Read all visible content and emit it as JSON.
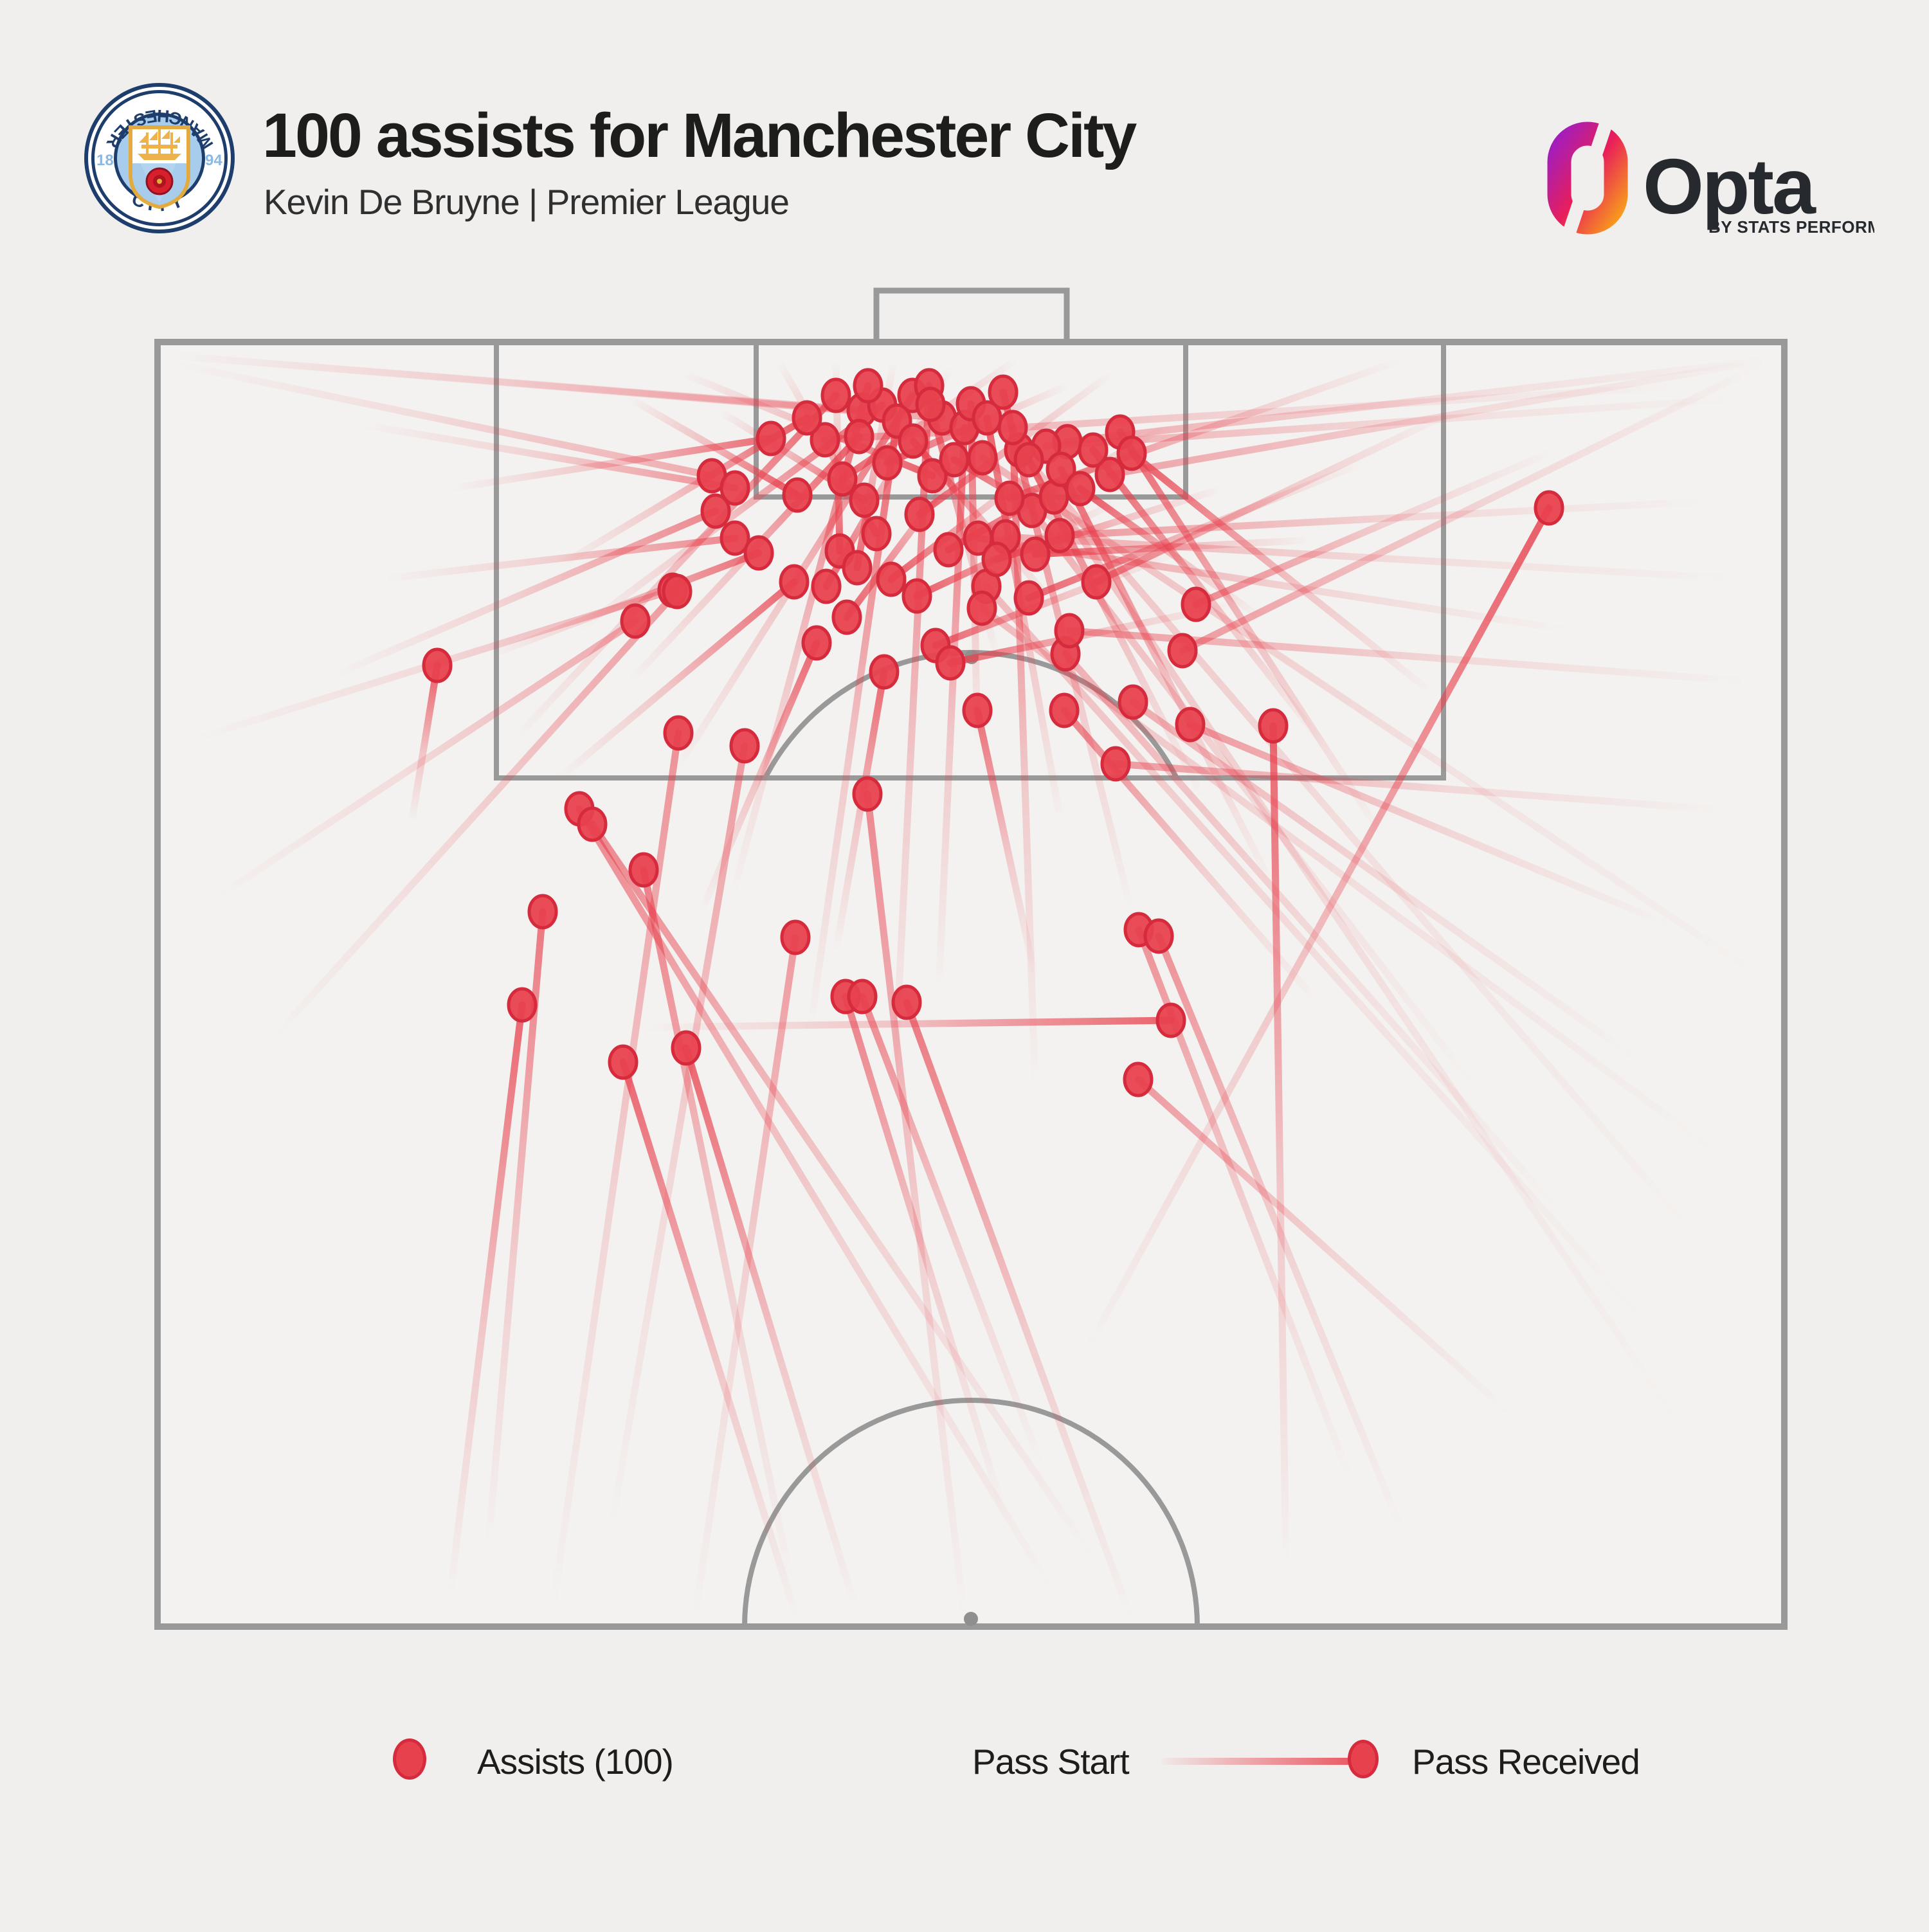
{
  "header": {
    "title": "100 assists for Manchester City",
    "subtitle": "Kevin De Bruyne | Premier League"
  },
  "branding": {
    "club_badge": {
      "name": "manchester-city-crest",
      "text_top": "MANCHESTER",
      "text_bottom": "CITY",
      "year_left": "18",
      "year_right": "94"
    },
    "provider": {
      "name": "Opta",
      "tagline": "BY STATS PERFORM"
    }
  },
  "legend": {
    "assists_label": "Assists (100)",
    "pass_start_label": "Pass Start",
    "pass_received_label": "Pass Received"
  },
  "colors": {
    "background": "#f0efed",
    "pitch_fill": "#f3f2f0",
    "pitch_line": "#999999",
    "spot_gray": "#8f8f8f",
    "accent_red": "#e8414e",
    "accent_red_dark": "#d62b3d",
    "title_text": "#1d1d1b",
    "subtitle_text": "#2f2f2f",
    "opta_purple": "#a21dbc",
    "opta_crimson": "#e81e5a",
    "opta_orange": "#f8991d"
  },
  "chart_data": {
    "type": "scatter",
    "subtype": "football-pass-map",
    "title": "100 assists for Manchester City",
    "player": "Kevin De Bruyne",
    "competition": "Premier League",
    "total_assists": 100,
    "coordinate_system": "pixels on 3000x3000 canvas; attacking goal at top; pitch rect x 245-2775, y 532-2530",
    "series_note": "each pass = [start_x, start_y, received_x, received_y, end_opacity]; line fades toward pass start, dot drawn at received point",
    "passes": [
      [
        265,
        553,
        1340,
        638,
        0.35
      ],
      [
        265,
        553,
        1465,
        650,
        0.4
      ],
      [
        268,
        565,
        1107,
        740,
        0.4
      ],
      [
        2748,
        560,
        1660,
        687,
        0.4
      ],
      [
        2748,
        560,
        1726,
        738,
        0.45
      ],
      [
        2745,
        565,
        1839,
        1012,
        0.5
      ],
      [
        2700,
        620,
        1627,
        694,
        0.4
      ],
      [
        2620,
        600,
        1283,
        684,
        0.45
      ],
      [
        2700,
        900,
        1564,
        835,
        0.4
      ],
      [
        2550,
        1650,
        1762,
        1092,
        0.4
      ],
      [
        2430,
        1890,
        1657,
        1017,
        0.38
      ],
      [
        2560,
        2060,
        1534,
        912,
        0.32
      ],
      [
        2680,
        1800,
        1527,
        946,
        0.32
      ],
      [
        2300,
        1700,
        1605,
        794,
        0.38
      ],
      [
        2620,
        2230,
        1639,
        773,
        0.3
      ],
      [
        2660,
        1950,
        1585,
        700,
        0.3
      ],
      [
        2740,
        1520,
        1528,
        712,
        0.35
      ],
      [
        330,
        1400,
        988,
        966,
        0.42
      ],
      [
        300,
        1150,
        1046,
        918,
        0.4
      ],
      [
        420,
        1620,
        1053,
        920,
        0.5
      ],
      [
        860,
        2500,
        1055,
        1140,
        0.55
      ],
      [
        950,
        2380,
        1158,
        1160,
        0.5
      ],
      [
        1080,
        2520,
        1237,
        1458,
        0.5
      ],
      [
        2100,
        2300,
        1771,
        1446,
        0.55
      ],
      [
        2180,
        2380,
        1802,
        1456,
        0.55
      ],
      [
        2350,
        2200,
        1770,
        1679,
        0.5
      ],
      [
        1640,
        2480,
        901,
        1258,
        0.6
      ],
      [
        1705,
        2430,
        921,
        1282,
        0.6
      ],
      [
        560,
        660,
        1143,
        759,
        0.55
      ],
      [
        520,
        1050,
        1113,
        795,
        0.6
      ],
      [
        600,
        900,
        1143,
        837,
        0.6
      ],
      [
        2720,
        1060,
        1663,
        981,
        0.5
      ],
      [
        2680,
        1260,
        1735,
        1188,
        0.5
      ],
      [
        2600,
        1440,
        1851,
        1127,
        0.5
      ],
      [
        2650,
        780,
        1648,
        833,
        0.5
      ],
      [
        2440,
        980,
        1521,
        837,
        0.55
      ],
      [
        1230,
        2460,
        1001,
        1353,
        0.65
      ],
      [
        1560,
        2350,
        1315,
        1550,
        0.65
      ],
      [
        1620,
        2280,
        1341,
        1550,
        0.6
      ],
      [
        1500,
        2520,
        1349,
        1235,
        0.6
      ],
      [
        2050,
        1560,
        1655,
        1105,
        0.65
      ],
      [
        2420,
        700,
        1860,
        940,
        0.6
      ],
      [
        1690,
        2100,
        2409,
        790,
        0.85
      ],
      [
        700,
        2480,
        812,
        1563,
        0.8
      ],
      [
        760,
        2400,
        844,
        1418,
        0.7
      ],
      [
        1240,
        2520,
        969,
        1652,
        0.8
      ],
      [
        1330,
        2500,
        1067,
        1630,
        0.8
      ],
      [
        2000,
        2440,
        1980,
        1129,
        0.8
      ],
      [
        1002,
        1598,
        1821,
        1587,
        0.8
      ],
      [
        1760,
        2520,
        1410,
        1559,
        0.7
      ],
      [
        640,
        1280,
        680,
        1035,
        0.85
      ],
      [
        700,
        760,
        1199,
        682,
        0.75
      ],
      [
        980,
        1060,
        1336,
        679,
        0.85
      ],
      [
        900,
        980,
        1372,
        630,
        0.8
      ],
      [
        1050,
        1200,
        1419,
        615,
        0.8
      ],
      [
        870,
        880,
        1255,
        650,
        0.85
      ],
      [
        800,
        1150,
        1300,
        615,
        0.8
      ],
      [
        1140,
        1390,
        1350,
        600,
        0.8
      ],
      [
        1260,
        1600,
        1395,
        655,
        0.8
      ],
      [
        1390,
        1700,
        1445,
        600,
        0.75
      ],
      [
        1460,
        1540,
        1500,
        665,
        0.8
      ],
      [
        1610,
        1690,
        1575,
        665,
        0.75
      ],
      [
        1520,
        1160,
        1510,
        628,
        0.85
      ],
      [
        1650,
        1280,
        1535,
        650,
        0.85
      ],
      [
        1760,
        1420,
        1560,
        610,
        0.8
      ],
      [
        1870,
        1240,
        1600,
        715,
        0.85
      ],
      [
        1980,
        1380,
        1650,
        730,
        0.8
      ],
      [
        2060,
        1160,
        1700,
        700,
        0.85
      ],
      [
        2150,
        1300,
        1742,
        672,
        0.8
      ],
      [
        2230,
        1080,
        1760,
        705,
        0.85
      ],
      [
        1960,
        960,
        1680,
        760,
        0.9
      ],
      [
        2040,
        840,
        1610,
        862,
        0.9
      ],
      [
        1900,
        760,
        1550,
        870,
        0.9
      ],
      [
        1820,
        660,
        1475,
        855,
        0.9
      ],
      [
        1730,
        580,
        1430,
        800,
        0.85
      ],
      [
        1660,
        600,
        1380,
        720,
        0.9
      ],
      [
        1580,
        560,
        1310,
        745,
        0.85
      ],
      [
        980,
        620,
        1240,
        770,
        0.9
      ],
      [
        1060,
        580,
        1450,
        740,
        0.85
      ],
      [
        1120,
        640,
        1344,
        778,
        0.9
      ],
      [
        1210,
        560,
        1363,
        830,
        0.85
      ],
      [
        1300,
        560,
        1306,
        857,
        0.85
      ],
      [
        1390,
        560,
        1333,
        883,
        0.8
      ],
      [
        1480,
        570,
        1285,
        912,
        0.8
      ],
      [
        1570,
        620,
        1317,
        960,
        0.8
      ],
      [
        1650,
        700,
        1386,
        901,
        0.85
      ],
      [
        1740,
        780,
        1426,
        927,
        0.85
      ],
      [
        1830,
        860,
        1455,
        1004,
        0.8
      ],
      [
        1920,
        940,
        1478,
        1031,
        0.8
      ],
      [
        1730,
        860,
        1484,
        715,
        0.9
      ],
      [
        1640,
        940,
        1420,
        686,
        0.9
      ],
      [
        1550,
        1020,
        1447,
        629,
        0.85
      ],
      [
        870,
        1210,
        1235,
        905,
        0.8
      ],
      [
        760,
        1020,
        1180,
        860,
        0.75
      ],
      [
        1090,
        1420,
        1270,
        1000,
        0.8
      ],
      [
        1300,
        1480,
        1375,
        1045,
        0.8
      ],
      [
        1610,
        1520,
        1520,
        1105,
        0.75
      ],
      [
        2120,
        720,
        1600,
        930,
        0.8
      ],
      [
        2260,
        640,
        1705,
        905,
        0.7
      ],
      [
        2180,
        560,
        1570,
        775,
        0.75
      ]
    ]
  }
}
